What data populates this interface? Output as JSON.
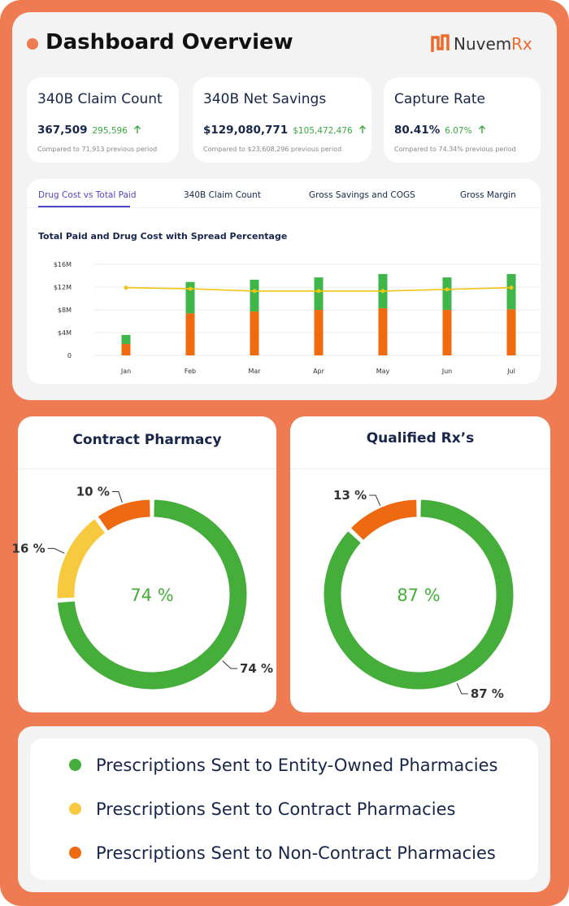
{
  "header": {
    "title": "Dashboard Overview",
    "logo": {
      "name": "Nuvem",
      "suffix": "Rx"
    }
  },
  "kpis": [
    {
      "title": "340B Claim Count",
      "value": "367,509",
      "change": "295,596",
      "comparison": "Compared to 71,913 previous period"
    },
    {
      "title": "340B Net Savings",
      "value": "$129,080,771",
      "change": "$105,472,476",
      "comparison": "Compared to $23,608,296 previous period"
    },
    {
      "title": "Capture Rate",
      "value": "80.41%",
      "change": "6.07%",
      "comparison": "Compared to 74.34% previous period"
    }
  ],
  "tabs": {
    "items": [
      "Drug Cost vs Total Paid",
      "340B Claim Count",
      "Gross Savings and COGS",
      "Gross Margin"
    ],
    "active": 0
  },
  "chart_data": [
    {
      "type": "bar",
      "stacked": true,
      "title": "Total Paid and Drug Cost with Spread Percentage",
      "categories": [
        "Jan",
        "Feb",
        "Mar",
        "Apr",
        "May",
        "Jun",
        "Jul"
      ],
      "series": [
        {
          "color": "#f06b0f",
          "values": [
            2.0,
            7.4,
            7.7,
            8.0,
            8.3,
            8.0,
            8.1
          ]
        },
        {
          "color": "#3fb54a",
          "values": [
            1.6,
            5.5,
            5.6,
            5.7,
            6.0,
            5.7,
            6.2
          ]
        },
        {
          "type": "line",
          "color": "#f2c414",
          "values": [
            11.9,
            11.7,
            11.3,
            11.3,
            11.3,
            11.6,
            11.9
          ]
        }
      ],
      "ylim": [
        0,
        16
      ],
      "yticks": [
        0,
        {
          "value": 4,
          "label": "$4M"
        },
        {
          "value": 8,
          "label": "$8M"
        },
        {
          "value": 12,
          "label": "$12M"
        },
        {
          "value": 16,
          "label": "$16M"
        }
      ],
      "grid": true
    },
    {
      "type": "pie",
      "title": "Contract Pharmacy",
      "values": [
        74,
        16,
        10
      ],
      "value_labels": [
        "74 %",
        "16 %",
        "10 %"
      ],
      "colors": [
        "#45ad3a",
        "#f6c93e",
        "#ee6a12"
      ]
    },
    {
      "type": "pie",
      "title": "Qualified Rx’s",
      "values": [
        87,
        13
      ],
      "value_labels": [
        "87 %",
        "13 %"
      ],
      "colors": [
        "#45ad3a",
        "#ee6a12"
      ]
    }
  ],
  "legend": {
    "items": [
      {
        "label": "Prescriptions Sent to Entity-Owned Pharmacies",
        "color": "#45ad3a"
      },
      {
        "label": "Prescriptions Sent to Contract Pharmacies",
        "color": "#f6c93e"
      },
      {
        "label": "Prescriptions Sent to Non-Contract Pharmacies",
        "color": "#ee6a12"
      }
    ]
  }
}
